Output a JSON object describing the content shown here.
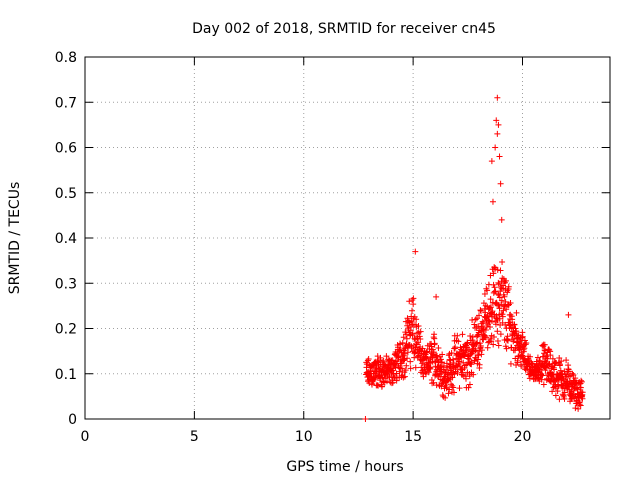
{
  "chart_data": {
    "type": "scatter",
    "title": "Day 002 of 2018, SRMTID for receiver cn45",
    "xlabel": "GPS time / hours",
    "ylabel": "SRMTID / TECUs",
    "xlim": [
      0,
      24
    ],
    "ylim": [
      0,
      0.8
    ],
    "xticks": [
      0,
      5,
      10,
      15,
      20
    ],
    "xtick_labels": [
      "0",
      "5",
      "10",
      "15",
      "20"
    ],
    "yticks": [
      0,
      0.1,
      0.2,
      0.3,
      0.4,
      0.5,
      0.6,
      0.7,
      0.8
    ],
    "ytick_labels": [
      "0",
      "0.1",
      "0.2",
      "0.3",
      "0.4",
      "0.5",
      "0.6",
      "0.7",
      "0.8"
    ],
    "grid": true,
    "marker": "+",
    "color": "#ff0000",
    "series": [
      {
        "name": "SRMTID",
        "x_start": 12.85,
        "x_end": 22.75,
        "outliers": [
          {
            "x": 12.82,
            "y": 0.0
          },
          {
            "x": 15.1,
            "y": 0.37
          },
          {
            "x": 18.6,
            "y": 0.57
          },
          {
            "x": 18.65,
            "y": 0.48
          },
          {
            "x": 18.75,
            "y": 0.6
          },
          {
            "x": 18.8,
            "y": 0.66
          },
          {
            "x": 18.85,
            "y": 0.71
          },
          {
            "x": 18.9,
            "y": 0.65
          },
          {
            "x": 18.95,
            "y": 0.58
          },
          {
            "x": 19.0,
            "y": 0.52
          },
          {
            "x": 18.85,
            "y": 0.63
          },
          {
            "x": 19.05,
            "y": 0.44
          },
          {
            "x": 22.1,
            "y": 0.23
          },
          {
            "x": 16.05,
            "y": 0.27
          }
        ],
        "envelope": [
          {
            "x": 12.9,
            "min": 0.06,
            "max": 0.14
          },
          {
            "x": 13.5,
            "min": 0.06,
            "max": 0.15
          },
          {
            "x": 14.0,
            "min": 0.07,
            "max": 0.14
          },
          {
            "x": 14.5,
            "min": 0.08,
            "max": 0.2
          },
          {
            "x": 15.0,
            "min": 0.1,
            "max": 0.31
          },
          {
            "x": 15.5,
            "min": 0.08,
            "max": 0.15
          },
          {
            "x": 16.0,
            "min": 0.06,
            "max": 0.21
          },
          {
            "x": 16.5,
            "min": 0.04,
            "max": 0.14
          },
          {
            "x": 17.0,
            "min": 0.06,
            "max": 0.2
          },
          {
            "x": 17.5,
            "min": 0.05,
            "max": 0.21
          },
          {
            "x": 18.0,
            "min": 0.1,
            "max": 0.25
          },
          {
            "x": 18.5,
            "min": 0.16,
            "max": 0.33
          },
          {
            "x": 19.0,
            "min": 0.12,
            "max": 0.4
          },
          {
            "x": 19.5,
            "min": 0.12,
            "max": 0.28
          },
          {
            "x": 20.0,
            "min": 0.1,
            "max": 0.2
          },
          {
            "x": 20.5,
            "min": 0.08,
            "max": 0.12
          },
          {
            "x": 21.0,
            "min": 0.07,
            "max": 0.18
          },
          {
            "x": 21.5,
            "min": 0.04,
            "max": 0.15
          },
          {
            "x": 22.0,
            "min": 0.03,
            "max": 0.14
          },
          {
            "x": 22.5,
            "min": 0.02,
            "max": 0.09
          }
        ]
      }
    ]
  }
}
